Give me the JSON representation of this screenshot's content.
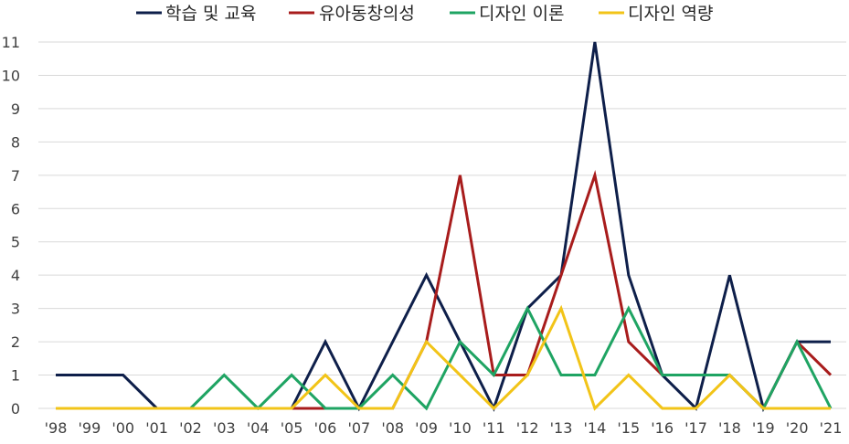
{
  "chart_data": {
    "type": "line",
    "title": "",
    "xlabel": "",
    "ylabel": "",
    "ylim": [
      0,
      11
    ],
    "yticks": [
      0,
      1,
      2,
      3,
      4,
      5,
      6,
      7,
      8,
      9,
      10,
      11
    ],
    "grid": "horizontal",
    "legend_position": "top",
    "categories": [
      "'98",
      "'99",
      "'00",
      "'01",
      "'02",
      "'03",
      "'04",
      "'05",
      "'06",
      "'07",
      "'08",
      "'09",
      "'10",
      "'11",
      "'12",
      "'13",
      "'14",
      "'15",
      "'16",
      "'17",
      "'18",
      "'19",
      "'20",
      "'21"
    ],
    "series": [
      {
        "name": "학습 및 교육",
        "color": "#0e1f4a",
        "values": [
          1,
          1,
          1,
          0,
          0,
          0,
          0,
          0,
          2,
          0,
          2,
          4,
          2,
          0,
          3,
          4,
          11,
          4,
          1,
          0,
          4,
          0,
          2,
          2
        ]
      },
      {
        "name": "유아동창의성",
        "color": "#a81c1c",
        "values": [
          0,
          0,
          0,
          0,
          0,
          0,
          0,
          0,
          0,
          0,
          0,
          2,
          7,
          1,
          1,
          4,
          7,
          2,
          1,
          1,
          1,
          0,
          2,
          1
        ]
      },
      {
        "name": "디자인 이론",
        "color": "#1fa463",
        "values": [
          0,
          0,
          0,
          0,
          0,
          1,
          0,
          1,
          0,
          0,
          1,
          0,
          2,
          1,
          3,
          1,
          1,
          3,
          1,
          1,
          1,
          0,
          2,
          0
        ]
      },
      {
        "name": "디자인 역량",
        "color": "#f2c418",
        "values": [
          0,
          0,
          0,
          0,
          0,
          0,
          0,
          0,
          1,
          0,
          0,
          2,
          1,
          0,
          1,
          3,
          0,
          1,
          0,
          0,
          1,
          0,
          0,
          0
        ]
      }
    ]
  }
}
